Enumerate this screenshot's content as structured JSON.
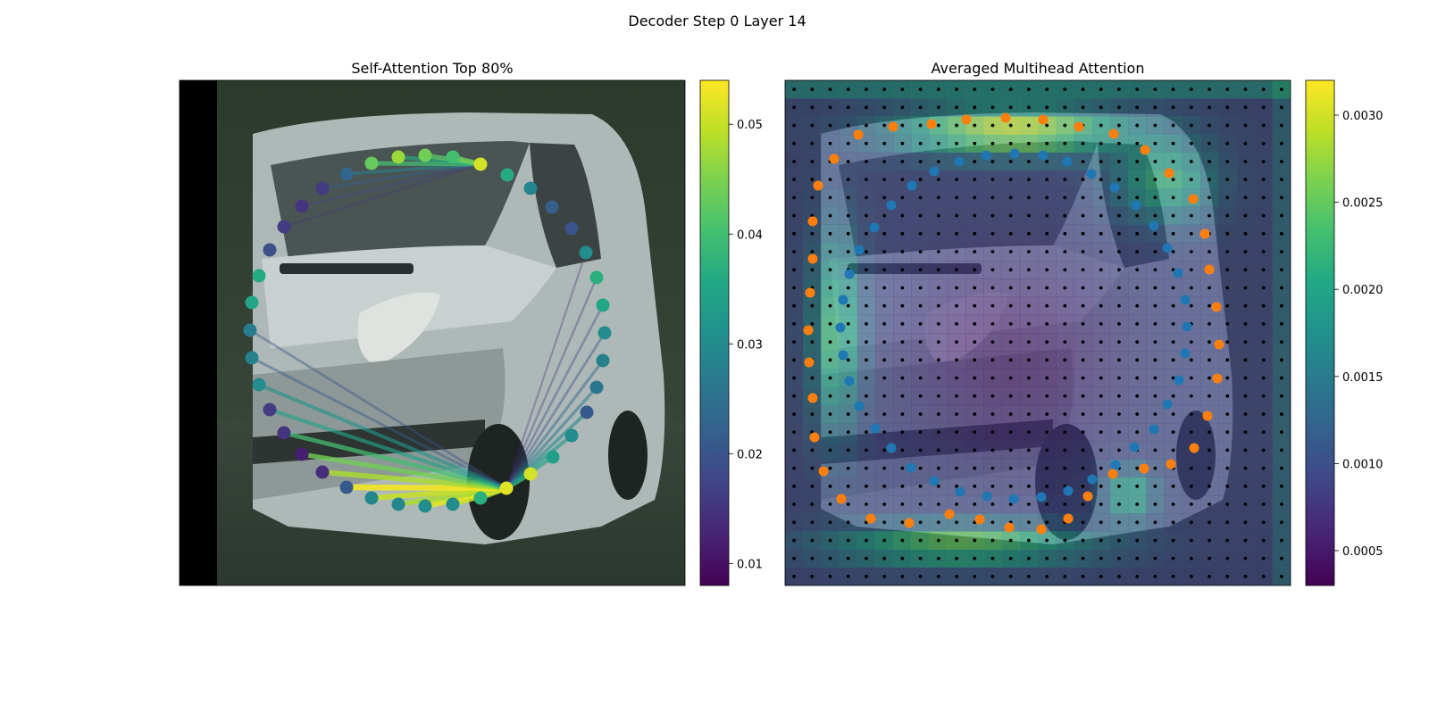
{
  "figure": {
    "title": "Decoder Step 0 Layer 14"
  },
  "chart_data": [
    {
      "type": "scatter",
      "title": "Self-Attention Top 80%",
      "description_of_marks": "outline points on image, connected by attention lines",
      "colormap": "viridis",
      "colorbar": {
        "min": 0.008,
        "max": 0.054,
        "ticks": [
          "0.01",
          "0.02",
          "0.03",
          "0.04",
          "0.05"
        ],
        "tick_values": [
          0.01,
          0.02,
          0.03,
          0.04,
          0.05
        ]
      },
      "grid": false,
      "points": [
        {
          "x": 538,
          "y": 184,
          "v": 0.051
        },
        {
          "x": 568,
          "y": 196,
          "v": 0.036
        },
        {
          "x": 594,
          "y": 211,
          "v": 0.029
        },
        {
          "x": 618,
          "y": 232,
          "v": 0.022
        },
        {
          "x": 640,
          "y": 256,
          "v": 0.02
        },
        {
          "x": 656,
          "y": 283,
          "v": 0.03
        },
        {
          "x": 668,
          "y": 311,
          "v": 0.037
        },
        {
          "x": 675,
          "y": 342,
          "v": 0.035
        },
        {
          "x": 677,
          "y": 373,
          "v": 0.03
        },
        {
          "x": 675,
          "y": 404,
          "v": 0.028
        },
        {
          "x": 668,
          "y": 434,
          "v": 0.026
        },
        {
          "x": 657,
          "y": 462,
          "v": 0.021
        },
        {
          "x": 640,
          "y": 488,
          "v": 0.03
        },
        {
          "x": 619,
          "y": 512,
          "v": 0.034
        },
        {
          "x": 594,
          "y": 531,
          "v": 0.051
        },
        {
          "x": 567,
          "y": 547,
          "v": 0.052
        },
        {
          "x": 538,
          "y": 558,
          "v": 0.037
        },
        {
          "x": 507,
          "y": 565,
          "v": 0.03
        },
        {
          "x": 476,
          "y": 567,
          "v": 0.03
        },
        {
          "x": 446,
          "y": 565,
          "v": 0.029
        },
        {
          "x": 416,
          "y": 558,
          "v": 0.029
        },
        {
          "x": 388,
          "y": 546,
          "v": 0.021
        },
        {
          "x": 361,
          "y": 529,
          "v": 0.014
        },
        {
          "x": 338,
          "y": 509,
          "v": 0.012
        },
        {
          "x": 318,
          "y": 485,
          "v": 0.015
        },
        {
          "x": 302,
          "y": 459,
          "v": 0.016
        },
        {
          "x": 290,
          "y": 431,
          "v": 0.03
        },
        {
          "x": 282,
          "y": 401,
          "v": 0.028
        },
        {
          "x": 280,
          "y": 370,
          "v": 0.027
        },
        {
          "x": 282,
          "y": 339,
          "v": 0.035
        },
        {
          "x": 290,
          "y": 309,
          "v": 0.036
        },
        {
          "x": 302,
          "y": 280,
          "v": 0.019
        },
        {
          "x": 318,
          "y": 254,
          "v": 0.016
        },
        {
          "x": 338,
          "y": 231,
          "v": 0.015
        },
        {
          "x": 361,
          "y": 211,
          "v": 0.016
        },
        {
          "x": 388,
          "y": 195,
          "v": 0.023
        },
        {
          "x": 416,
          "y": 183,
          "v": 0.043
        },
        {
          "x": 446,
          "y": 176,
          "v": 0.047
        },
        {
          "x": 476,
          "y": 174,
          "v": 0.044
        },
        {
          "x": 507,
          "y": 176,
          "v": 0.04
        }
      ],
      "attention_lines": [
        {
          "from": 0,
          "to": 33,
          "w": 0.018
        },
        {
          "from": 0,
          "to": 34,
          "w": 0.022
        },
        {
          "from": 0,
          "to": 35,
          "w": 0.028
        },
        {
          "from": 0,
          "to": 36,
          "w": 0.04
        },
        {
          "from": 0,
          "to": 37,
          "w": 0.036
        },
        {
          "from": 0,
          "to": 38,
          "w": 0.042
        },
        {
          "from": 0,
          "to": 39,
          "w": 0.044
        },
        {
          "from": 0,
          "to": 32,
          "w": 0.016
        },
        {
          "from": 15,
          "to": 16,
          "w": 0.046
        },
        {
          "from": 15,
          "to": 17,
          "w": 0.05
        },
        {
          "from": 15,
          "to": 18,
          "w": 0.052
        },
        {
          "from": 15,
          "to": 19,
          "w": 0.048
        },
        {
          "from": 15,
          "to": 20,
          "w": 0.05
        },
        {
          "from": 15,
          "to": 21,
          "w": 0.053
        },
        {
          "from": 15,
          "to": 22,
          "w": 0.048
        },
        {
          "from": 15,
          "to": 23,
          "w": 0.044
        },
        {
          "from": 15,
          "to": 24,
          "w": 0.04
        },
        {
          "from": 15,
          "to": 25,
          "w": 0.034
        },
        {
          "from": 15,
          "to": 26,
          "w": 0.032
        },
        {
          "from": 15,
          "to": 27,
          "w": 0.022
        },
        {
          "from": 15,
          "to": 28,
          "w": 0.02
        },
        {
          "from": 15,
          "to": 14,
          "w": 0.04
        },
        {
          "from": 15,
          "to": 13,
          "w": 0.034
        },
        {
          "from": 15,
          "to": 12,
          "w": 0.032
        },
        {
          "from": 15,
          "to": 11,
          "w": 0.03
        },
        {
          "from": 15,
          "to": 10,
          "w": 0.026
        },
        {
          "from": 15,
          "to": 9,
          "w": 0.024
        },
        {
          "from": 15,
          "to": 8,
          "w": 0.02
        },
        {
          "from": 15,
          "to": 7,
          "w": 0.018
        },
        {
          "from": 15,
          "to": 6,
          "w": 0.016
        },
        {
          "from": 15,
          "to": 5,
          "w": 0.014
        }
      ]
    },
    {
      "type": "heatmap",
      "title": "Averaged Multihead Attention",
      "colormap": "viridis",
      "colorbar": {
        "min": 0.0003,
        "max": 0.0032,
        "ticks": [
          "0.0005",
          "0.0010",
          "0.0015",
          "0.0020",
          "0.0025",
          "0.0030"
        ],
        "tick_values": [
          0.0005,
          0.001,
          0.0015,
          0.002,
          0.0025,
          0.003
        ]
      },
      "grid_size": [
        28,
        28
      ],
      "grid": false,
      "orange_points": [
        [
          1126,
          132
        ],
        [
          1168,
          134
        ],
        [
          1208,
          142
        ],
        [
          1247,
          150
        ],
        [
          1282,
          168
        ],
        [
          1309,
          194
        ],
        [
          1336,
          223
        ],
        [
          1349,
          262
        ],
        [
          1354,
          302
        ],
        [
          1362,
          344
        ],
        [
          1365,
          386
        ],
        [
          1363,
          424
        ],
        [
          1352,
          466
        ],
        [
          1337,
          502
        ],
        [
          1311,
          520
        ],
        [
          1281,
          525
        ],
        [
          1246,
          531
        ],
        [
          1218,
          556
        ],
        [
          1196,
          581
        ],
        [
          1166,
          593
        ],
        [
          1130,
          591
        ],
        [
          1097,
          582
        ],
        [
          1063,
          576
        ],
        [
          1018,
          586
        ],
        [
          975,
          581
        ],
        [
          942,
          559
        ],
        [
          922,
          528
        ],
        [
          912,
          490
        ],
        [
          910,
          446
        ],
        [
          906,
          406
        ],
        [
          905,
          370
        ],
        [
          907,
          328
        ],
        [
          910,
          290
        ],
        [
          910,
          248
        ],
        [
          916,
          208
        ],
        [
          934,
          178
        ],
        [
          961,
          151
        ],
        [
          1000,
          142
        ],
        [
          1043,
          139
        ],
        [
          1082,
          134
        ]
      ],
      "blue_points": [
        [
          1136,
          172
        ],
        [
          1168,
          174
        ],
        [
          1195,
          181
        ],
        [
          1222,
          195
        ],
        [
          1248,
          210
        ],
        [
          1272,
          230
        ],
        [
          1292,
          253
        ],
        [
          1307,
          278
        ],
        [
          1319,
          306
        ],
        [
          1327,
          336
        ],
        [
          1329,
          366
        ],
        [
          1327,
          396
        ],
        [
          1320,
          426
        ],
        [
          1307,
          453
        ],
        [
          1292,
          481
        ],
        [
          1270,
          501
        ],
        [
          1249,
          521
        ],
        [
          1223,
          537
        ],
        [
          1196,
          550
        ],
        [
          1166,
          557
        ],
        [
          1135,
          559
        ],
        [
          1105,
          556
        ],
        [
          1075,
          551
        ],
        [
          1046,
          539
        ],
        [
          1020,
          524
        ],
        [
          998,
          502
        ],
        [
          980,
          480
        ],
        [
          962,
          455
        ],
        [
          951,
          427
        ],
        [
          944,
          398
        ],
        [
          941,
          367
        ],
        [
          944,
          336
        ],
        [
          951,
          307
        ],
        [
          962,
          280
        ],
        [
          979,
          255
        ],
        [
          998,
          230
        ],
        [
          1021,
          208
        ],
        [
          1046,
          192
        ],
        [
          1074,
          181
        ],
        [
          1104,
          174
        ]
      ]
    }
  ]
}
